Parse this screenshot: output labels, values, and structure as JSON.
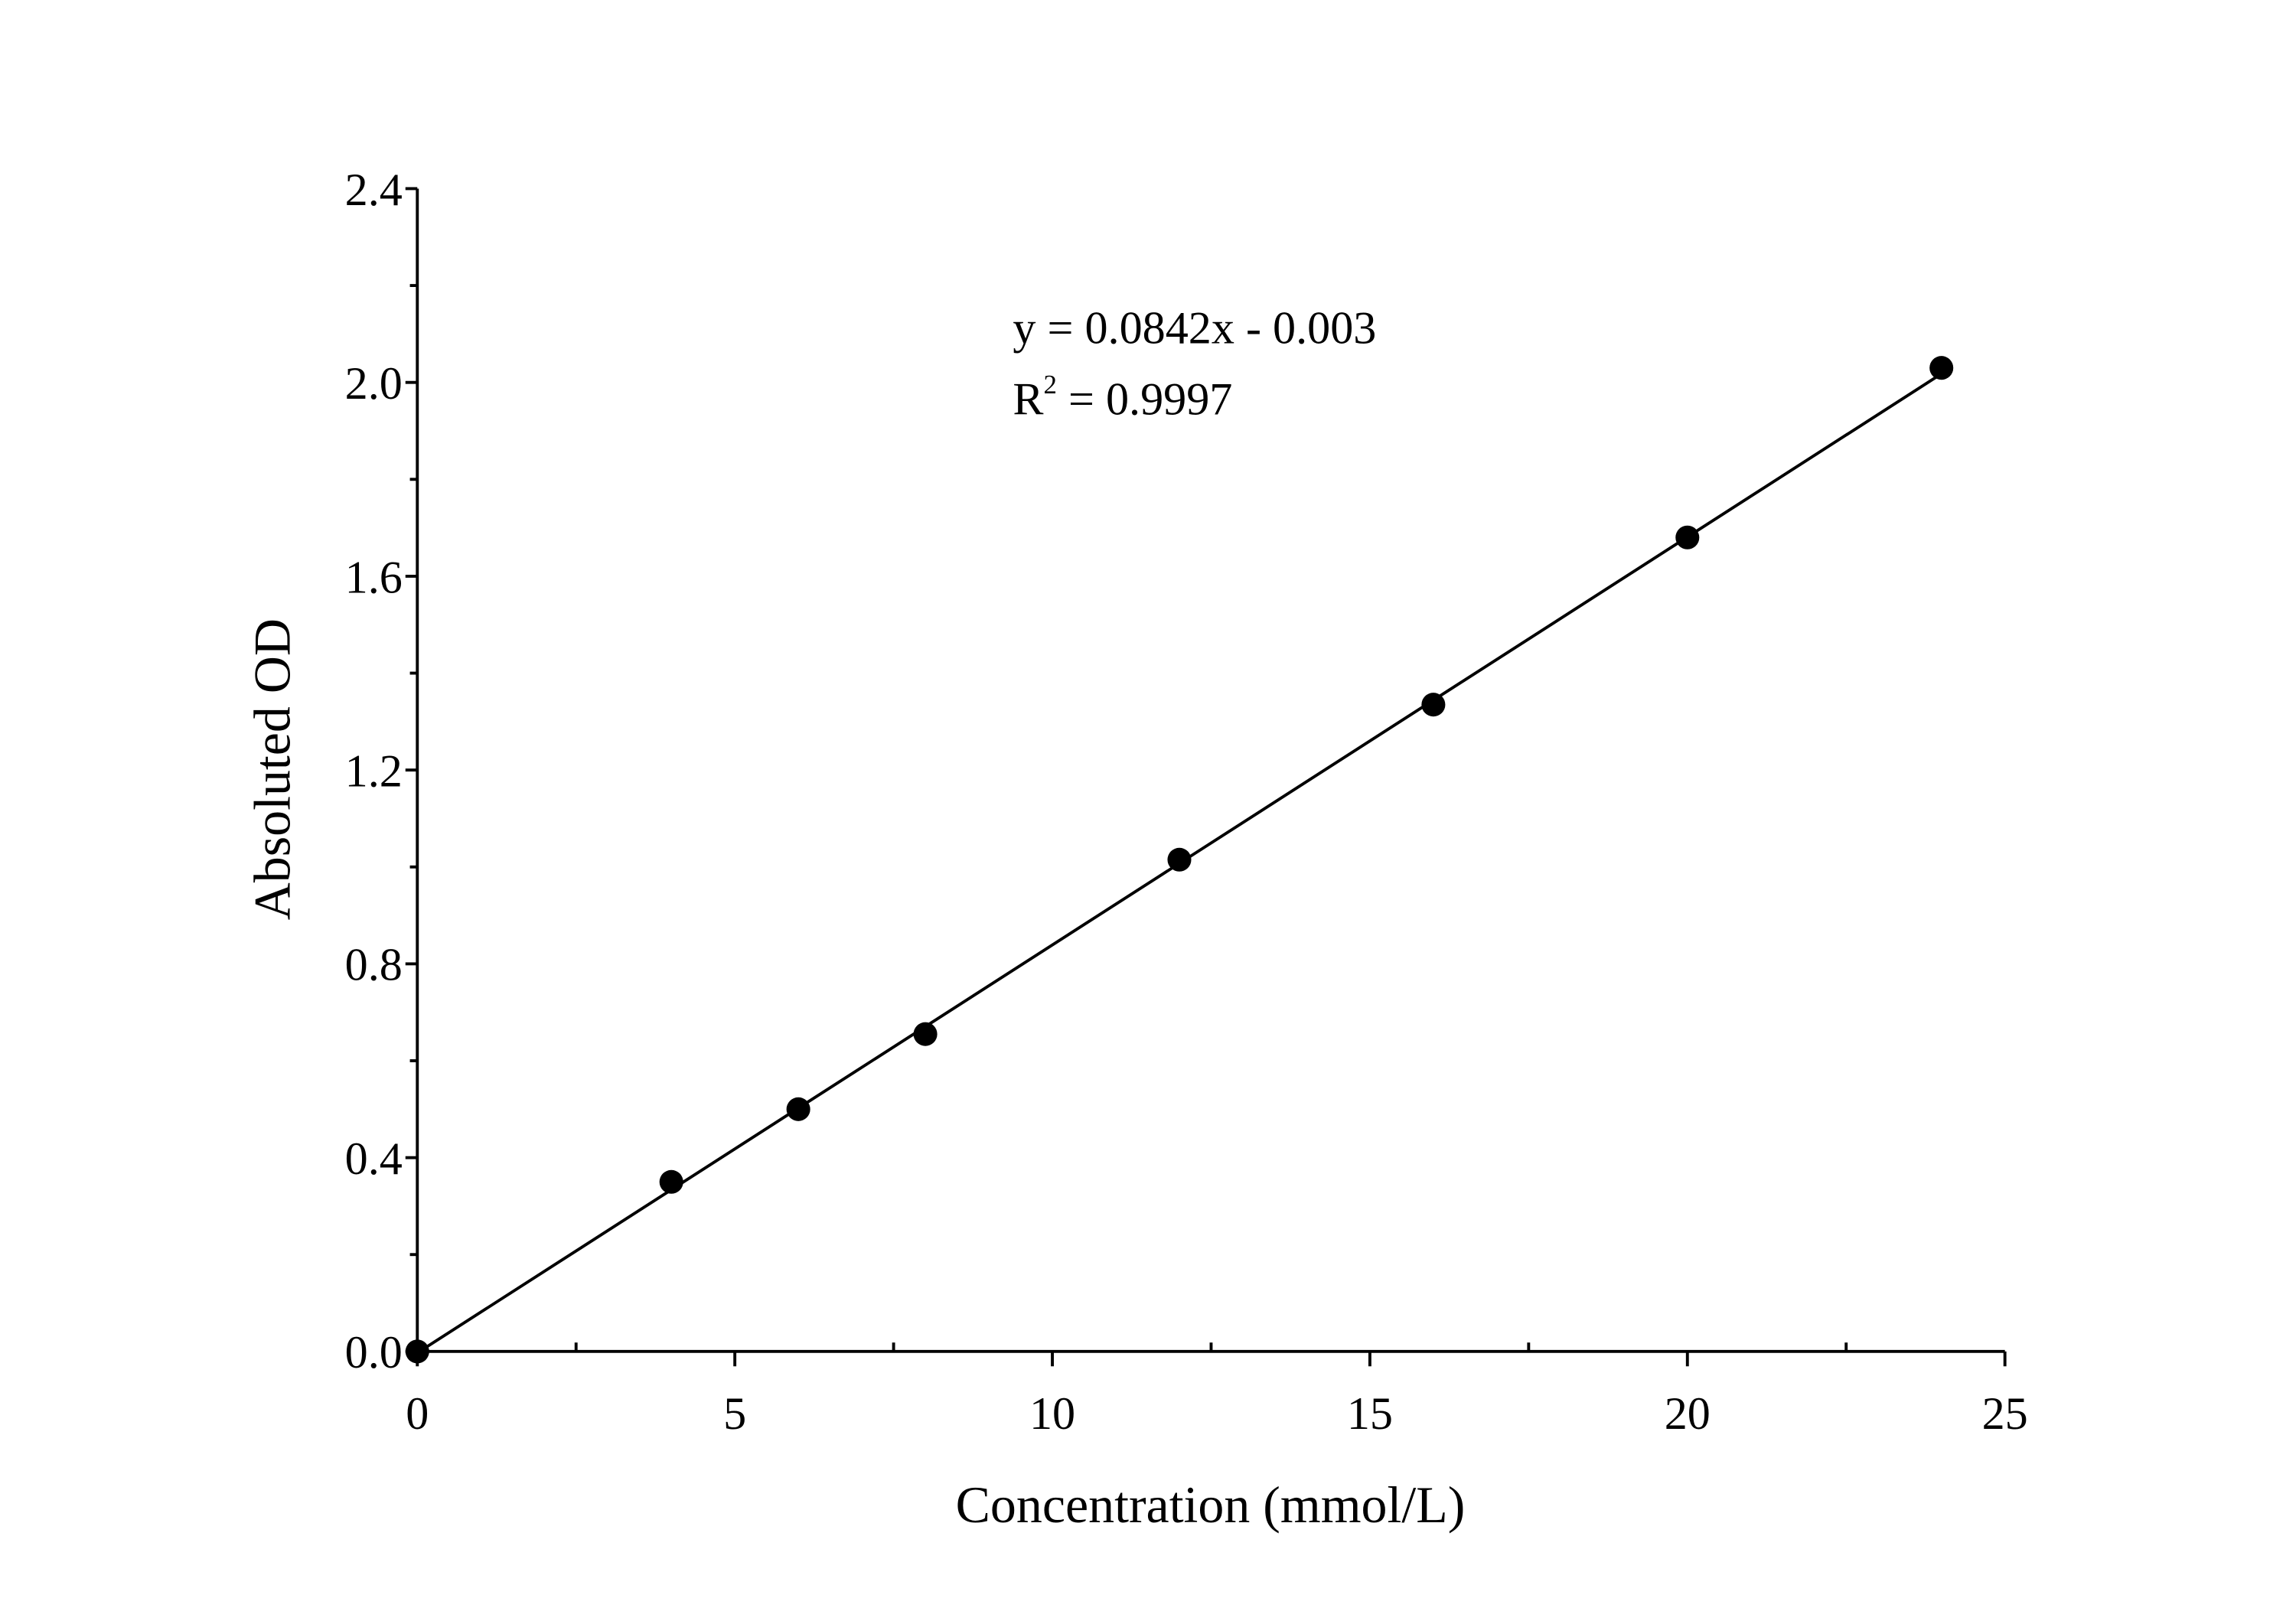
{
  "chart_data": {
    "type": "scatter",
    "x_label": "Concentration (mmol/L)",
    "y_label": "Absoluted OD",
    "x": [
      0,
      4,
      6,
      8,
      12,
      16,
      20,
      24
    ],
    "values": [
      0,
      0.35,
      0.5,
      0.655,
      1.015,
      1.335,
      1.68,
      2.03
    ],
    "color": "#000000",
    "trendline": {
      "slope": 0.0842,
      "intercept": -0.003
    },
    "equation": "y = 0.0842x - 0.003",
    "r_squared": {
      "base": "R",
      "sup": "2",
      "rest": " = 0.9997"
    },
    "xlim": [
      0,
      25
    ],
    "xticks": [
      0,
      5,
      10,
      15,
      20,
      25
    ],
    "xminorticks": [
      2.5,
      7.5,
      12.5,
      17.5,
      22.5
    ],
    "ylim": [
      0,
      2.4
    ],
    "yticks": [
      {
        "value": 0,
        "label": "0.0"
      },
      0.4,
      0.8,
      1.2,
      1.6,
      {
        "value": 2,
        "label": "2.0"
      },
      2.4
    ],
    "yminorticks": [
      0.2,
      0.6,
      1.0,
      1.4,
      1.8,
      2.2
    ]
  }
}
